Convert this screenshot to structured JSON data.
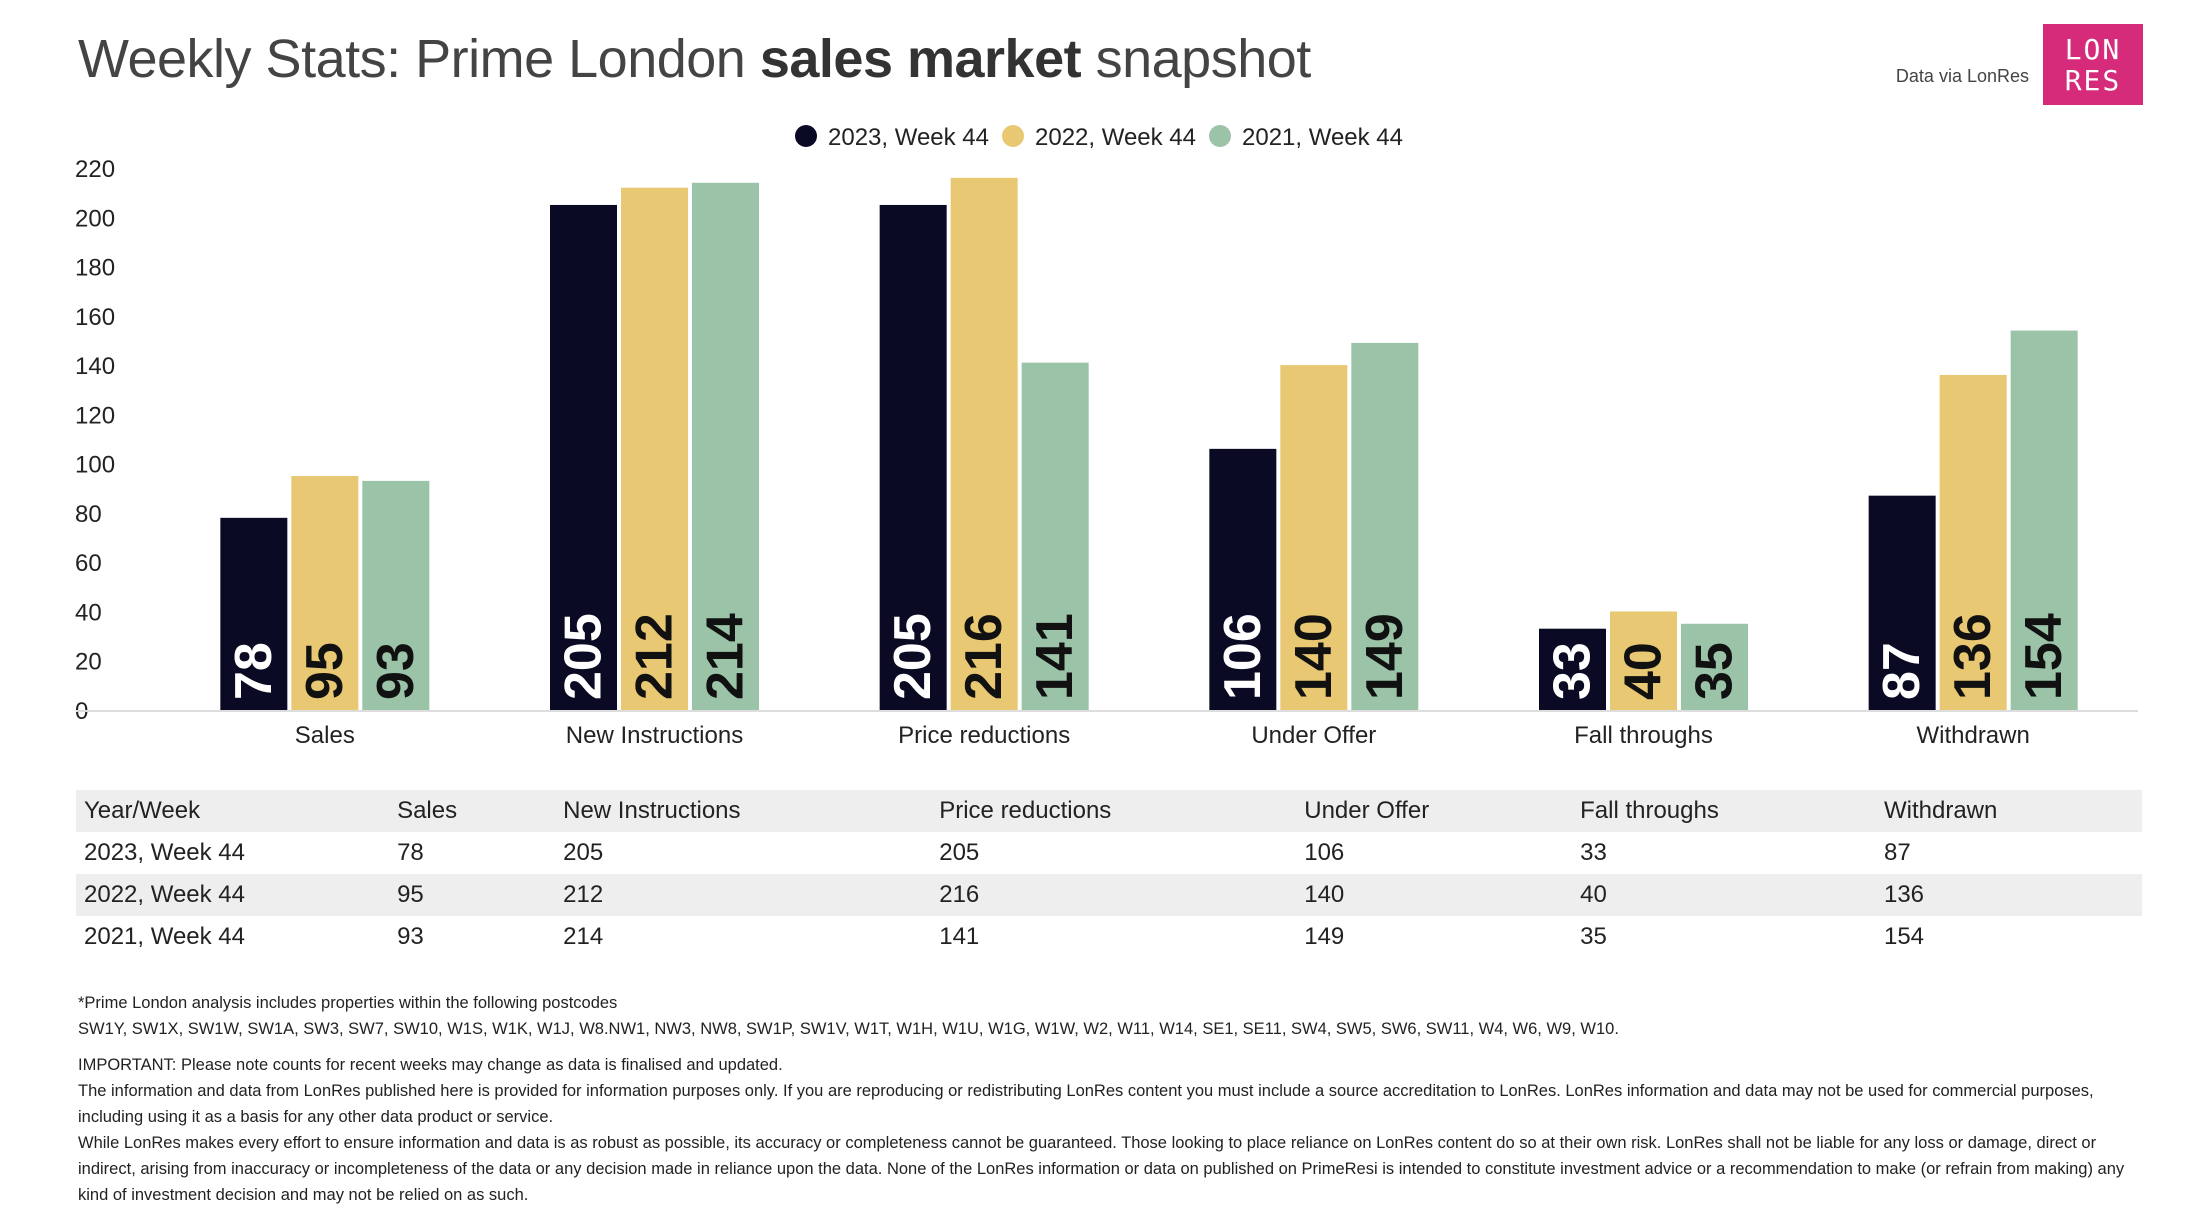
{
  "title": {
    "prefix": "Weekly Stats: Prime London ",
    "bold": "sales market",
    "suffix": " snapshot"
  },
  "source": "Data via LonRes",
  "logo": {
    "line1": "LON",
    "line2": "RES"
  },
  "colors": {
    "series_2023": "#0b0a24",
    "series_2022": "#e8c873",
    "series_2021": "#9bc3a8",
    "logo_bg": "#d52b7a",
    "table_stripe": "#eeeeee"
  },
  "chart_data": {
    "type": "bar",
    "title": "Weekly Stats: Prime London sales market snapshot",
    "categories": [
      "Sales",
      "New Instructions",
      "Price reductions",
      "Under Offer",
      "Fall throughs",
      "Withdrawn"
    ],
    "series": [
      {
        "name": "2023, Week 44",
        "values": [
          78,
          205,
          205,
          106,
          33,
          87
        ]
      },
      {
        "name": "2022, Week 44",
        "values": [
          95,
          212,
          216,
          140,
          40,
          136
        ]
      },
      {
        "name": "2021, Week 44",
        "values": [
          93,
          214,
          141,
          149,
          35,
          154
        ]
      }
    ],
    "yticks": [
      0,
      20,
      40,
      60,
      80,
      100,
      120,
      140,
      160,
      180,
      200,
      220
    ],
    "ylim": [
      0,
      220
    ],
    "xlabel": "",
    "ylabel": "",
    "legend_position": "top-center",
    "grid": false,
    "data_labels": "inside-bottom-rotated"
  },
  "table": {
    "headers": [
      "Year/Week",
      "Sales",
      "New Instructions",
      "Price reductions",
      "Under Offer",
      "Fall throughs",
      "Withdrawn"
    ],
    "rows": [
      [
        "2023, Week 44",
        "78",
        "205",
        "205",
        "106",
        "33",
        "87"
      ],
      [
        "2022, Week 44",
        "95",
        "212",
        "216",
        "140",
        "40",
        "136"
      ],
      [
        "2021, Week 44",
        "93",
        "214",
        "141",
        "149",
        "35",
        "154"
      ]
    ]
  },
  "notes": {
    "postcode_intro": "*Prime London analysis includes properties within the following postcodes",
    "postcodes": "SW1Y, SW1X, SW1W, SW1A, SW3, SW7, SW10, W1S, W1K, W1J, W8.NW1, NW3, NW8, SW1P, SW1V, W1T, W1H, W1U, W1G, W1W, W2, W11, W14, SE1, SE11, SW4, SW5, SW6, SW11, W4, W6, W9, W10.",
    "important": "IMPORTANT: Please note counts for recent weeks may change as data is finalised and updated.",
    "usage": "The information and data from LonRes published here is provided for information purposes only. If you are reproducing or redistributing LonRes content you must include a source accreditation to LonRes. LonRes information and data may not be used for commercial purposes, including using it as a basis for any other data product or service.",
    "disclaimer": "While LonRes makes every effort to ensure information and data is as robust as possible, its accuracy or completeness cannot be guaranteed. Those looking to place reliance on LonRes content do so at their own risk. LonRes shall not be liable for any loss or damage, direct or indirect, arising from inaccuracy or incompleteness of the data or any decision made in reliance upon the data. None of the LonRes information or data on published on PrimeResi is intended to constitute investment advice or a recommendation to make (or refrain from making) any kind of investment decision and may not be relied on as such."
  }
}
